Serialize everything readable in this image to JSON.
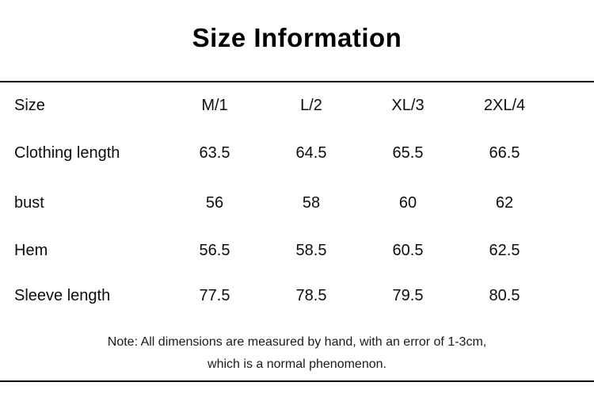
{
  "page": {
    "title": "Size Information",
    "note": {
      "line1": "Note: All dimensions are measured by hand, with an error of 1-3cm,",
      "line2": "which is a normal phenomenon."
    }
  },
  "size_table": {
    "header": [
      "Size",
      "M/1",
      "L/2",
      "XL/3",
      "2XL/4"
    ],
    "rows": [
      {
        "label": "Clothing length",
        "values": [
          "63.5",
          "64.5",
          "65.5",
          "66.5"
        ]
      },
      {
        "label": "bust",
        "values": [
          "56",
          "58",
          "60",
          "62"
        ]
      },
      {
        "label": "Hem",
        "values": [
          "56.5",
          "58.5",
          "60.5",
          "62.5"
        ]
      },
      {
        "label": "Sleeve length",
        "values": [
          "77.5",
          "78.5",
          "79.5",
          "80.5"
        ]
      }
    ]
  },
  "colors": {
    "background": "#ffffff",
    "text": "#0d0d0d",
    "divider": "#000000"
  }
}
